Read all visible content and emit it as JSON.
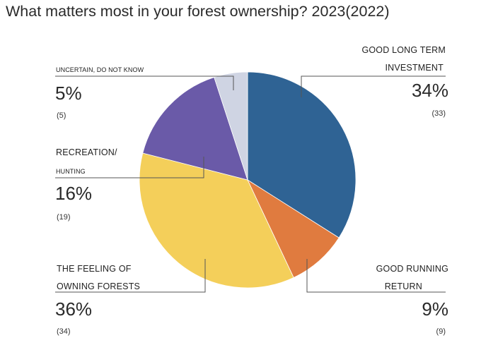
{
  "chart_data": {
    "type": "pie",
    "title": "What matters most in your forest ownership? 2023(2022)",
    "slices": [
      {
        "label_lines": [
          "GOOD LONG TERM",
          "INVESTMENT"
        ],
        "value": 34,
        "display": "34%",
        "previous": "(33)",
        "color": "#2f6394"
      },
      {
        "label_lines": [
          "GOOD RUNNING",
          "RETURN"
        ],
        "value": 9,
        "display": "9%",
        "previous": "(9)",
        "color": "#e07b3f"
      },
      {
        "label_lines": [
          "THE FEELING OF",
          "OWNING FORESTS"
        ],
        "value": 36,
        "display": "36%",
        "previous": "(34)",
        "color": "#f4cf5a"
      },
      {
        "label_lines": [
          "RECREATION/",
          "HUNTING"
        ],
        "value": 16,
        "display": "16%",
        "previous": "(19)",
        "color": "#6a5aa8"
      },
      {
        "label_lines": [
          "UNCERTAIN, DO NOT KNOW"
        ],
        "value": 5,
        "display": "5%",
        "previous": "(5)",
        "color": "#cfd4e3"
      }
    ],
    "legend": "none"
  }
}
